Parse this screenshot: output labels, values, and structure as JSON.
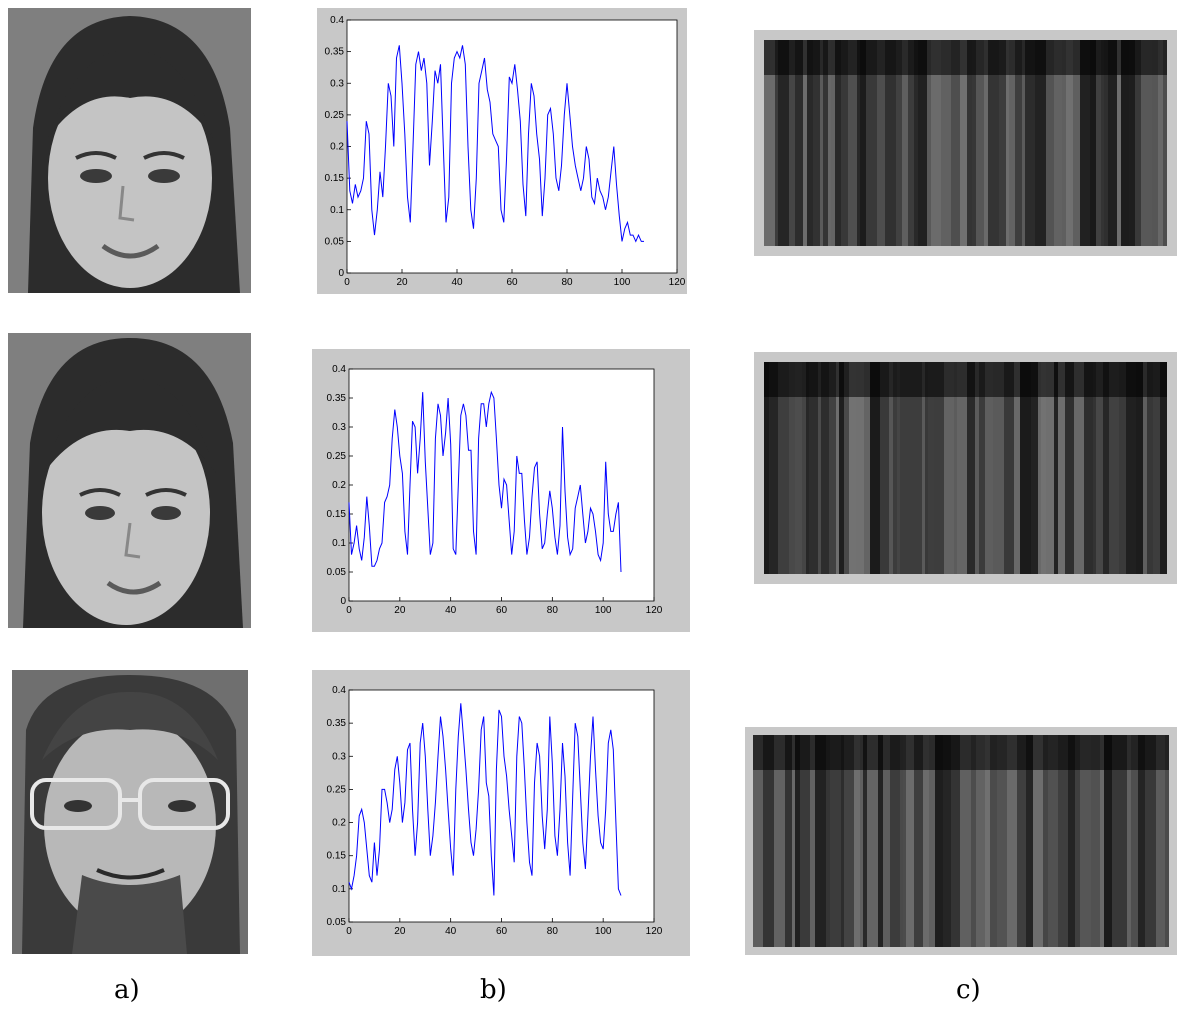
{
  "captions": {
    "a": "a)",
    "b": "b)",
    "c": "c)"
  },
  "colors": {
    "panel_bg": "#c8c8c8",
    "line": "#0000ff",
    "stripe_dark": "#111111"
  },
  "icons": {
    "face": "grayscale-face-photo",
    "stripes": "grayscale-feature-stripes"
  },
  "chart_data": [
    {
      "type": "line",
      "xlim": [
        0,
        120
      ],
      "ylim": [
        0,
        0.4
      ],
      "xticks": [
        "0",
        "20",
        "40",
        "60",
        "80",
        "100",
        "120"
      ],
      "yticks": [
        "0",
        "0.05",
        "0.1",
        "0.15",
        "0.2",
        "0.25",
        "0.3",
        "0.35",
        "0.4"
      ],
      "grid": false,
      "series": [
        {
          "x": [
            0,
            1,
            2,
            3,
            4,
            5,
            6,
            7,
            8,
            9,
            10,
            11,
            12,
            13,
            14,
            15,
            16,
            17,
            18,
            19,
            20,
            21,
            22,
            23,
            24,
            25,
            26,
            27,
            28,
            29,
            30,
            31,
            32,
            33,
            34,
            35,
            36,
            37,
            38,
            39,
            40,
            41,
            42,
            43,
            44,
            45,
            46,
            47,
            48,
            49,
            50,
            51,
            52,
            53,
            54,
            55,
            56,
            57,
            58,
            59,
            60,
            61,
            62,
            63,
            64,
            65,
            66,
            67,
            68,
            69,
            70,
            71,
            72,
            73,
            74,
            75,
            76,
            77,
            78,
            79,
            80,
            81,
            82,
            83,
            84,
            85,
            86,
            87,
            88,
            89,
            90,
            91,
            92,
            93,
            94,
            95,
            96,
            97,
            98,
            99,
            100,
            101,
            102,
            103,
            104,
            105,
            106,
            107,
            108
          ],
          "y": [
            0.24,
            0.13,
            0.11,
            0.14,
            0.12,
            0.13,
            0.15,
            0.24,
            0.22,
            0.1,
            0.06,
            0.1,
            0.16,
            0.12,
            0.2,
            0.3,
            0.28,
            0.2,
            0.34,
            0.36,
            0.3,
            0.22,
            0.12,
            0.08,
            0.2,
            0.33,
            0.35,
            0.32,
            0.34,
            0.3,
            0.17,
            0.24,
            0.32,
            0.3,
            0.33,
            0.2,
            0.08,
            0.12,
            0.3,
            0.34,
            0.35,
            0.34,
            0.36,
            0.33,
            0.2,
            0.1,
            0.07,
            0.15,
            0.3,
            0.32,
            0.34,
            0.29,
            0.27,
            0.22,
            0.21,
            0.2,
            0.1,
            0.08,
            0.18,
            0.31,
            0.3,
            0.33,
            0.29,
            0.24,
            0.14,
            0.09,
            0.22,
            0.3,
            0.28,
            0.22,
            0.18,
            0.09,
            0.15,
            0.25,
            0.26,
            0.22,
            0.15,
            0.13,
            0.17,
            0.25,
            0.3,
            0.25,
            0.2,
            0.17,
            0.15,
            0.13,
            0.15,
            0.2,
            0.18,
            0.12,
            0.11,
            0.15,
            0.13,
            0.12,
            0.1,
            0.12,
            0.16,
            0.2,
            0.14,
            0.09,
            0.05,
            0.07,
            0.08,
            0.06,
            0.06,
            0.05,
            0.06,
            0.05,
            0.05
          ]
        }
      ]
    },
    {
      "type": "line",
      "xlim": [
        0,
        120
      ],
      "ylim": [
        0,
        0.4
      ],
      "xticks": [
        "0",
        "20",
        "40",
        "60",
        "80",
        "100",
        "120"
      ],
      "yticks": [
        "0",
        "0.05",
        "0.1",
        "0.15",
        "0.2",
        "0.25",
        "0.3",
        "0.35",
        "0.4"
      ],
      "grid": false,
      "series": [
        {
          "x": [
            0,
            1,
            2,
            3,
            4,
            5,
            6,
            7,
            8,
            9,
            10,
            11,
            12,
            13,
            14,
            15,
            16,
            17,
            18,
            19,
            20,
            21,
            22,
            23,
            24,
            25,
            26,
            27,
            28,
            29,
            30,
            31,
            32,
            33,
            34,
            35,
            36,
            37,
            38,
            39,
            40,
            41,
            42,
            43,
            44,
            45,
            46,
            47,
            48,
            49,
            50,
            51,
            52,
            53,
            54,
            55,
            56,
            57,
            58,
            59,
            60,
            61,
            62,
            63,
            64,
            65,
            66,
            67,
            68,
            69,
            70,
            71,
            72,
            73,
            74,
            75,
            76,
            77,
            78,
            79,
            80,
            81,
            82,
            83,
            84,
            85,
            86,
            87,
            88,
            89,
            90,
            91,
            92,
            93,
            94,
            95,
            96,
            97,
            98,
            99,
            100,
            101,
            102,
            103,
            104,
            105,
            106,
            107
          ],
          "y": [
            0.17,
            0.08,
            0.1,
            0.13,
            0.09,
            0.07,
            0.11,
            0.18,
            0.13,
            0.06,
            0.06,
            0.07,
            0.09,
            0.1,
            0.17,
            0.18,
            0.2,
            0.28,
            0.33,
            0.3,
            0.25,
            0.22,
            0.12,
            0.08,
            0.2,
            0.31,
            0.3,
            0.22,
            0.28,
            0.36,
            0.24,
            0.16,
            0.08,
            0.1,
            0.28,
            0.34,
            0.32,
            0.25,
            0.29,
            0.35,
            0.27,
            0.09,
            0.08,
            0.2,
            0.32,
            0.34,
            0.32,
            0.26,
            0.26,
            0.12,
            0.08,
            0.28,
            0.34,
            0.34,
            0.3,
            0.34,
            0.36,
            0.35,
            0.28,
            0.2,
            0.16,
            0.21,
            0.2,
            0.14,
            0.08,
            0.12,
            0.25,
            0.22,
            0.22,
            0.14,
            0.08,
            0.11,
            0.18,
            0.23,
            0.24,
            0.15,
            0.09,
            0.1,
            0.15,
            0.19,
            0.16,
            0.11,
            0.08,
            0.13,
            0.3,
            0.19,
            0.11,
            0.08,
            0.09,
            0.16,
            0.18,
            0.2,
            0.15,
            0.1,
            0.12,
            0.16,
            0.15,
            0.12,
            0.08,
            0.07,
            0.1,
            0.24,
            0.15,
            0.12,
            0.12,
            0.15,
            0.17,
            0.05
          ]
        }
      ]
    },
    {
      "type": "line",
      "xlim": [
        0,
        120
      ],
      "ylim": [
        0.05,
        0.4
      ],
      "xticks": [
        "0",
        "20",
        "40",
        "60",
        "80",
        "100",
        "120"
      ],
      "yticks": [
        "0.05",
        "0.1",
        "0.15",
        "0.2",
        "0.25",
        "0.3",
        "0.35",
        "0.4"
      ],
      "grid": false,
      "series": [
        {
          "x": [
            0,
            1,
            2,
            3,
            4,
            5,
            6,
            7,
            8,
            9,
            10,
            11,
            12,
            13,
            14,
            15,
            16,
            17,
            18,
            19,
            20,
            21,
            22,
            23,
            24,
            25,
            26,
            27,
            28,
            29,
            30,
            31,
            32,
            33,
            34,
            35,
            36,
            37,
            38,
            39,
            40,
            41,
            42,
            43,
            44,
            45,
            46,
            47,
            48,
            49,
            50,
            51,
            52,
            53,
            54,
            55,
            56,
            57,
            58,
            59,
            60,
            61,
            62,
            63,
            64,
            65,
            66,
            67,
            68,
            69,
            70,
            71,
            72,
            73,
            74,
            75,
            76,
            77,
            78,
            79,
            80,
            81,
            82,
            83,
            84,
            85,
            86,
            87,
            88,
            89,
            90,
            91,
            92,
            93,
            94,
            95,
            96,
            97,
            98,
            99,
            100,
            101,
            102,
            103,
            104,
            105,
            106,
            107
          ],
          "y": [
            0.11,
            0.1,
            0.12,
            0.15,
            0.21,
            0.22,
            0.2,
            0.16,
            0.12,
            0.11,
            0.17,
            0.12,
            0.16,
            0.25,
            0.25,
            0.23,
            0.2,
            0.22,
            0.28,
            0.3,
            0.26,
            0.2,
            0.23,
            0.31,
            0.32,
            0.22,
            0.15,
            0.2,
            0.32,
            0.35,
            0.3,
            0.22,
            0.15,
            0.18,
            0.23,
            0.3,
            0.36,
            0.33,
            0.28,
            0.22,
            0.16,
            0.12,
            0.25,
            0.33,
            0.38,
            0.33,
            0.28,
            0.22,
            0.17,
            0.15,
            0.19,
            0.25,
            0.34,
            0.36,
            0.26,
            0.24,
            0.15,
            0.09,
            0.28,
            0.37,
            0.36,
            0.3,
            0.27,
            0.22,
            0.18,
            0.14,
            0.3,
            0.36,
            0.35,
            0.28,
            0.2,
            0.14,
            0.12,
            0.26,
            0.32,
            0.3,
            0.21,
            0.16,
            0.22,
            0.36,
            0.29,
            0.18,
            0.15,
            0.22,
            0.32,
            0.27,
            0.17,
            0.12,
            0.24,
            0.35,
            0.33,
            0.25,
            0.17,
            0.13,
            0.21,
            0.3,
            0.36,
            0.28,
            0.21,
            0.17,
            0.16,
            0.22,
            0.32,
            0.34,
            0.31,
            0.2,
            0.1,
            0.09
          ]
        }
      ]
    }
  ]
}
